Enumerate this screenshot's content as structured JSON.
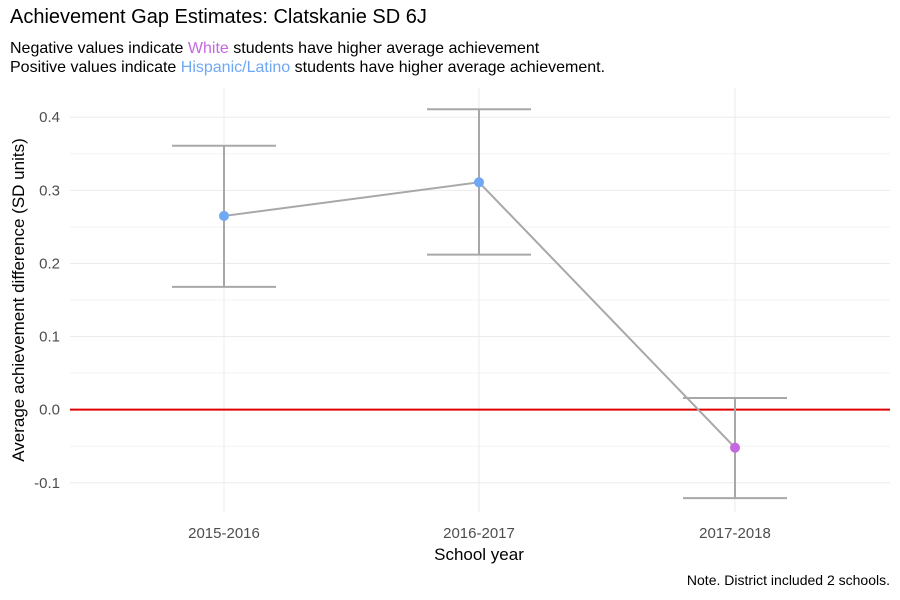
{
  "chart_data": {
    "type": "line",
    "title": "Achievement Gap Estimates: Clatskanie SD 6J",
    "subtitle": {
      "line1": {
        "before": "Negative values indicate ",
        "highlight": "White",
        "after": " students have higher average achievement"
      },
      "line2": {
        "before": "Positive values indicate ",
        "highlight": "Hispanic/Latino",
        "after": " students have higher average achievement."
      }
    },
    "xlabel": "School year",
    "ylabel": "Average achievement difference (SD units)",
    "caption": "Note. District included 2 schools.",
    "categories": [
      "2015-2016",
      "2016-2017",
      "2017-2018"
    ],
    "values": [
      0.265,
      0.311,
      -0.052
    ],
    "lower": [
      0.168,
      0.212,
      -0.121
    ],
    "upper": [
      0.361,
      0.411,
      0.016
    ],
    "ylim": [
      -0.14,
      0.44
    ],
    "yticks": [
      -0.1,
      0.0,
      0.1,
      0.2,
      0.3,
      0.4
    ],
    "ytick_labels": [
      "-0.1",
      "0.0",
      "0.1",
      "0.2",
      "0.3",
      "0.4"
    ],
    "reference_line": 0,
    "grid": true,
    "colors": {
      "white": "#c468e0",
      "hispanic_latino": "#6fa8f4",
      "line": "#a8a8a8",
      "reference": "#e00000",
      "grid": "#ebebeb"
    }
  }
}
